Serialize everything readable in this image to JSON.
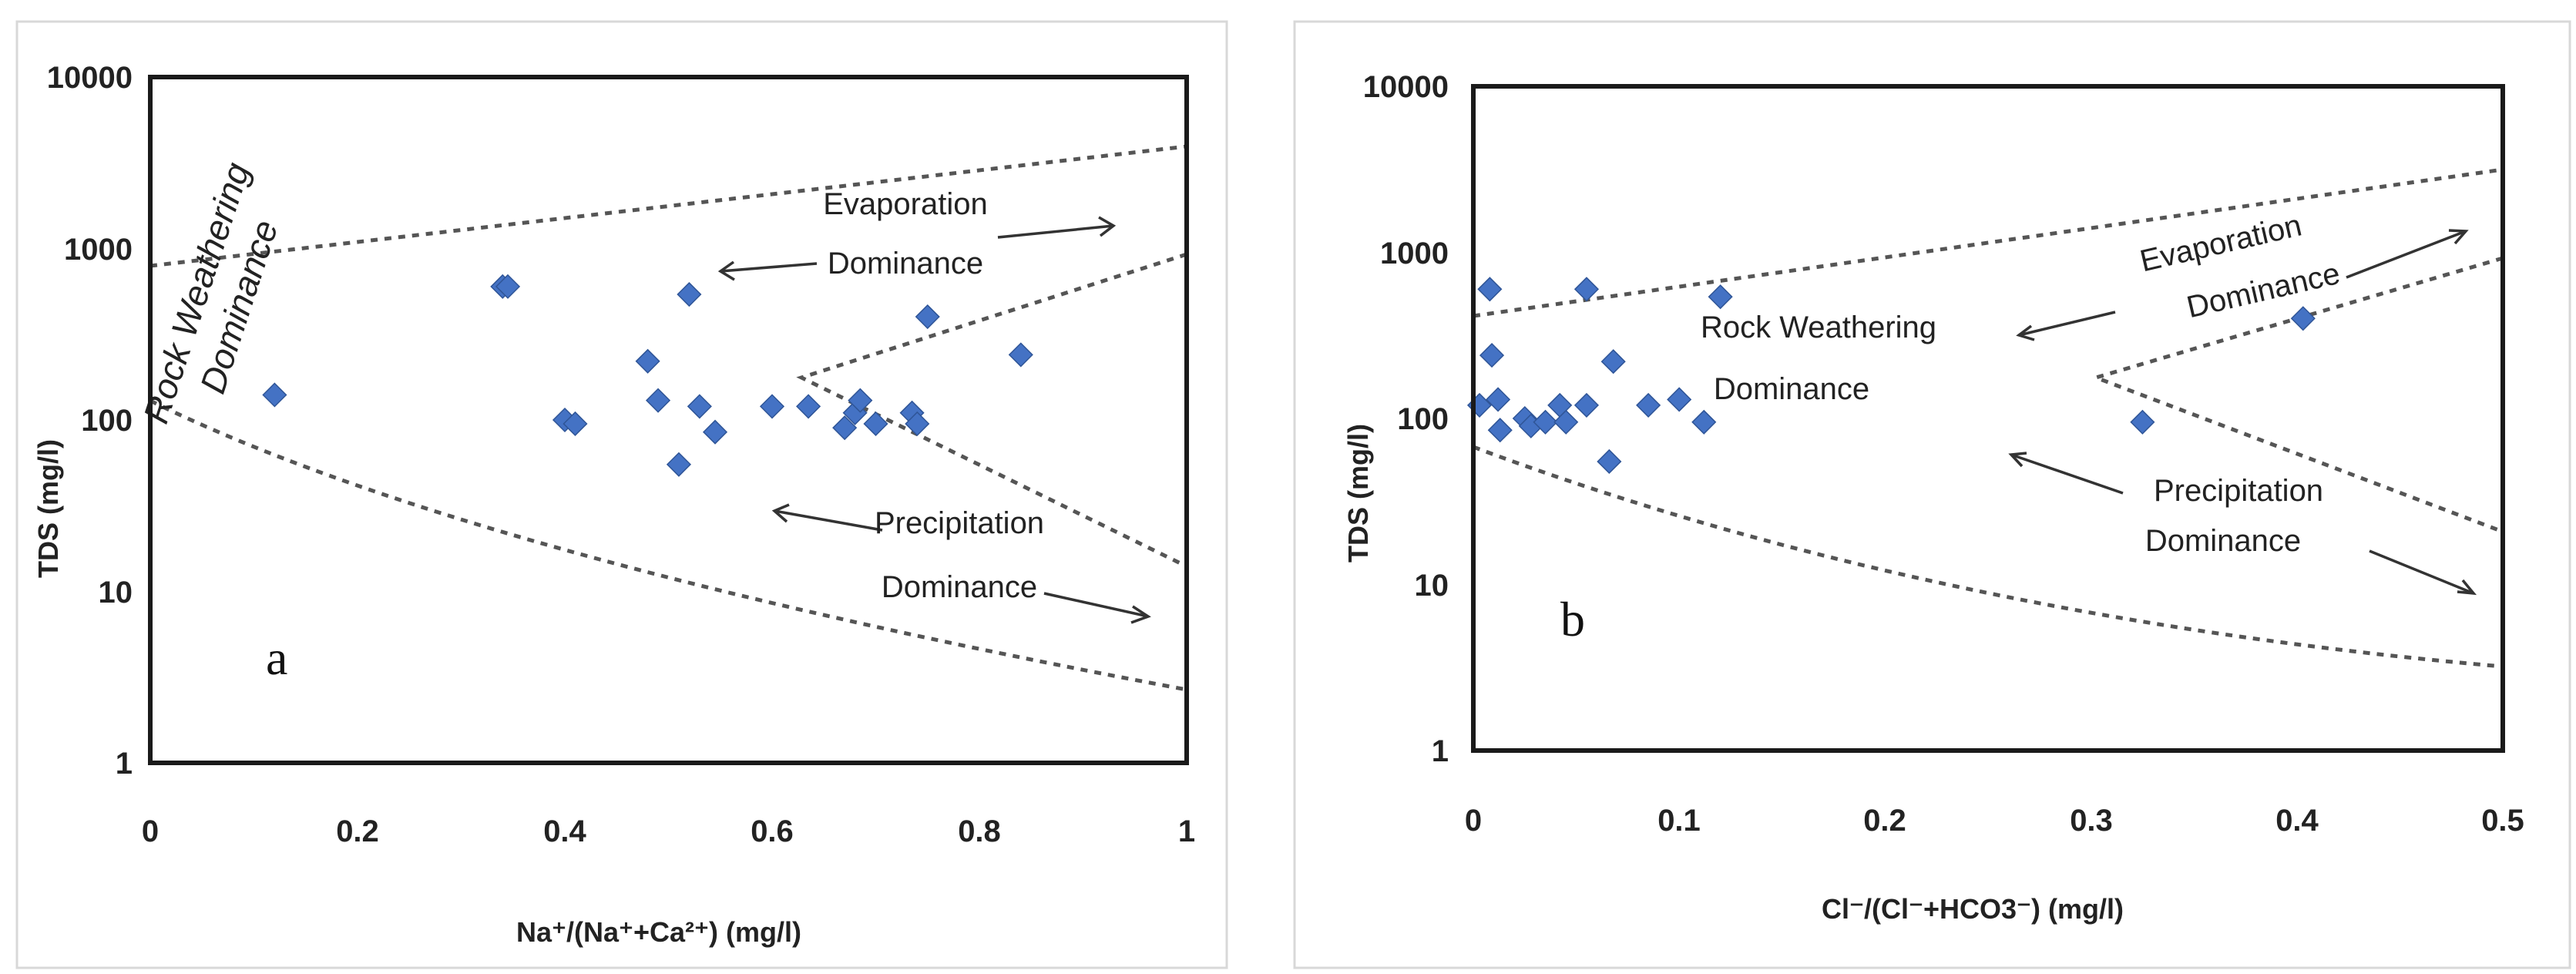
{
  "chart_data": [
    {
      "type": "scatter",
      "panel_label": "a",
      "xlabel": "Na⁺/(Na⁺+Ca²⁺) (mg/l)",
      "ylabel": "TDS (mg/l)",
      "xlim": [
        0,
        1
      ],
      "ylim": [
        1,
        10000
      ],
      "yscale": "log",
      "xticks": [
        "0",
        "0.2",
        "0.4",
        "0.6",
        "0.8",
        "1"
      ],
      "yticks": [
        "1",
        "10",
        "100",
        "1000",
        "10000"
      ],
      "marker_color": "#4472c4",
      "points": [
        {
          "x": 0.12,
          "y": 140
        },
        {
          "x": 0.34,
          "y": 600
        },
        {
          "x": 0.345,
          "y": 600
        },
        {
          "x": 0.4,
          "y": 100
        },
        {
          "x": 0.41,
          "y": 95
        },
        {
          "x": 0.48,
          "y": 220
        },
        {
          "x": 0.49,
          "y": 130
        },
        {
          "x": 0.51,
          "y": 55
        },
        {
          "x": 0.52,
          "y": 540
        },
        {
          "x": 0.53,
          "y": 120
        },
        {
          "x": 0.545,
          "y": 85
        },
        {
          "x": 0.6,
          "y": 120
        },
        {
          "x": 0.635,
          "y": 120
        },
        {
          "x": 0.67,
          "y": 90
        },
        {
          "x": 0.68,
          "y": 110
        },
        {
          "x": 0.685,
          "y": 130
        },
        {
          "x": 0.7,
          "y": 95
        },
        {
          "x": 0.735,
          "y": 110
        },
        {
          "x": 0.74,
          "y": 95
        },
        {
          "x": 0.75,
          "y": 400
        },
        {
          "x": 0.84,
          "y": 240
        }
      ],
      "annotations": [
        {
          "id": "rock",
          "text": "Rock Weathering Dominance",
          "line1": "Rock Weathering",
          "line2": "Dominance"
        },
        {
          "id": "evap",
          "text": "Evaporation Dominance",
          "line1": "Evaporation",
          "line2": "Dominance"
        },
        {
          "id": "precip",
          "text": "Precipitation Dominance",
          "line1": "Precipitation",
          "line2": "Dominance"
        }
      ]
    },
    {
      "type": "scatter",
      "panel_label": "b",
      "xlabel": "Cl⁻/(Cl⁻+HCO3⁻) (mg/l)",
      "ylabel": "TDS (mg/l)",
      "xlim": [
        0,
        0.5
      ],
      "ylim": [
        1,
        10000
      ],
      "yscale": "log",
      "xticks": [
        "0",
        "0.1",
        "0.2",
        "0.3",
        "0.4",
        "0.5"
      ],
      "yticks": [
        "1",
        "10",
        "100",
        "1000",
        "10000"
      ],
      "marker_color": "#4472c4",
      "points": [
        {
          "x": 0.003,
          "y": 120
        },
        {
          "x": 0.008,
          "y": 600
        },
        {
          "x": 0.009,
          "y": 240
        },
        {
          "x": 0.012,
          "y": 130
        },
        {
          "x": 0.013,
          "y": 85
        },
        {
          "x": 0.025,
          "y": 100
        },
        {
          "x": 0.028,
          "y": 90
        },
        {
          "x": 0.035,
          "y": 95
        },
        {
          "x": 0.042,
          "y": 120
        },
        {
          "x": 0.045,
          "y": 95
        },
        {
          "x": 0.055,
          "y": 600
        },
        {
          "x": 0.055,
          "y": 120
        },
        {
          "x": 0.066,
          "y": 55
        },
        {
          "x": 0.068,
          "y": 220
        },
        {
          "x": 0.085,
          "y": 120
        },
        {
          "x": 0.1,
          "y": 130
        },
        {
          "x": 0.112,
          "y": 95
        },
        {
          "x": 0.12,
          "y": 540
        },
        {
          "x": 0.325,
          "y": 95
        },
        {
          "x": 0.403,
          "y": 400
        }
      ],
      "annotations": [
        {
          "id": "evap",
          "text": "Evaporation Dominance",
          "line1": "Evaporation",
          "line2": "Dominance"
        },
        {
          "id": "rock",
          "text": "Rock Weathering Dominance",
          "line1": "Rock Weathering",
          "line2": "Dominance"
        },
        {
          "id": "precip",
          "text": "Precipitation Dominance",
          "line1": "Precipitation",
          "line2": "Dominance"
        }
      ]
    }
  ]
}
